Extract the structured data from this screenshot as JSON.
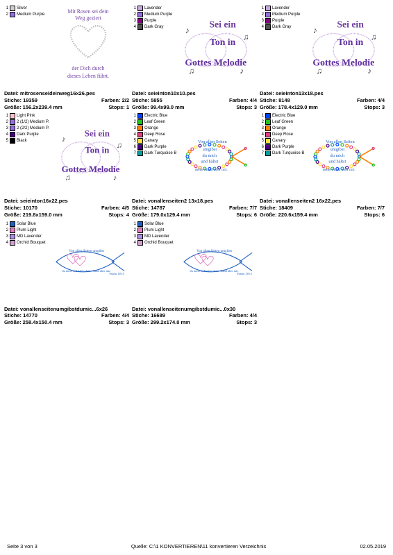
{
  "footer": {
    "page": "Seite 3 von 3",
    "source": "Quelle: C:\\1 KONVERTIEREN\\11 konvertieren Verzeichnis",
    "date": "02.05.2019"
  },
  "designs": [
    {
      "legend": [
        {
          "n": "1",
          "c": "#d0d0d0",
          "name": "Silver"
        },
        {
          "n": "2",
          "c": "#9370db",
          "name": "Medium Purple"
        }
      ],
      "file": "Datei: mitrosenseideinweg16x26.pes",
      "stiche": "Stiche: 19359",
      "farben": "Farben: 2/2",
      "groesse": "Größe: 156.2x239.4 mm",
      "stops": "Stops: 1",
      "svg": "heart"
    },
    {
      "legend": [
        {
          "n": "1",
          "c": "#c8a8e0",
          "name": "Lavender"
        },
        {
          "n": "2",
          "c": "#9370db",
          "name": "Medium Purple"
        },
        {
          "n": "3",
          "c": "#800080",
          "name": "Purple"
        },
        {
          "n": "4",
          "c": "#505050",
          "name": "Dark Gray"
        }
      ],
      "file": "Datei: seieinton10x10.pes",
      "stiche": "Stiche: 5855",
      "farben": "Farben: 4/4",
      "groesse": "Größe: 99.4x99.0 mm",
      "stops": "Stops: 3",
      "svg": "music"
    },
    {
      "legend": [
        {
          "n": "1",
          "c": "#c8a8e0",
          "name": "Lavender"
        },
        {
          "n": "2",
          "c": "#9370db",
          "name": "Medium Purple"
        },
        {
          "n": "3",
          "c": "#800080",
          "name": "Purple"
        },
        {
          "n": "4",
          "c": "#505050",
          "name": "Dark Gray"
        }
      ],
      "file": "Datei: seieinton13x18.pes",
      "stiche": "Stiche: 8148",
      "farben": "Farben: 4/4",
      "groesse": "Größe: 178.4x129.0 mm",
      "stops": "Stops: 3",
      "svg": "music"
    },
    {
      "legend": [
        {
          "n": "1",
          "c": "#ffc0cb",
          "name": "Light Pink"
        },
        {
          "n": "2",
          "c": "#9370db",
          "name": "2 (1/2) Medium P."
        },
        {
          "n": "3",
          "c": "#9370db",
          "name": "2 (2/2) Medium P."
        },
        {
          "n": "4",
          "c": "#4b0082",
          "name": "Dark Purple"
        },
        {
          "n": "5",
          "c": "#000000",
          "name": "Black"
        }
      ],
      "file": "Datei: seieinton16x22.pes",
      "stiche": "Stiche: 10170",
      "farben": "Farben: 4/5",
      "groesse": "Größe: 219.8x159.0 mm",
      "stops": "Stops: 4",
      "svg": "music"
    },
    {
      "legend": [
        {
          "n": "1",
          "c": "#0040ff",
          "name": "Electric Blue"
        },
        {
          "n": "2",
          "c": "#20c020",
          "name": "Leaf Green"
        },
        {
          "n": "3",
          "c": "#ff8000",
          "name": "Orange"
        },
        {
          "n": "4",
          "c": "#e04080",
          "name": "Deep Rose"
        },
        {
          "n": "5",
          "c": "#ffe040",
          "name": "Canary"
        },
        {
          "n": "6",
          "c": "#4b0082",
          "name": "Dark Purple"
        },
        {
          "n": "7",
          "c": "#00a0a0",
          "name": "Dark Turquoise B"
        }
      ],
      "file": "Datei: vonallenseiten2 13x18.pes",
      "stiche": "Stiche: 14787",
      "farben": "Farben: 7/7",
      "groesse": "Größe: 179.0x129.4 mm",
      "stops": "Stops: 6",
      "svg": "fish"
    },
    {
      "legend": [
        {
          "n": "1",
          "c": "#0040ff",
          "name": "Electric Blue"
        },
        {
          "n": "2",
          "c": "#20c020",
          "name": "Leaf Green"
        },
        {
          "n": "3",
          "c": "#ff8000",
          "name": "Orange"
        },
        {
          "n": "4",
          "c": "#e04080",
          "name": "Deep Rose"
        },
        {
          "n": "5",
          "c": "#ffe040",
          "name": "Canary"
        },
        {
          "n": "6",
          "c": "#4b0082",
          "name": "Dark Purple"
        },
        {
          "n": "7",
          "c": "#00a0a0",
          "name": "Dark Turquoise B"
        }
      ],
      "file": "Datei: vonallenseiten2 16x22.pes",
      "stiche": "Stiche: 18409",
      "farben": "Farben: 7/7",
      "groesse": "Größe: 220.6x159.4 mm",
      "stops": "Stops: 6",
      "svg": "fish"
    },
    {
      "legend": [
        {
          "n": "1",
          "c": "#2060c0",
          "name": "Solar Blue"
        },
        {
          "n": "2",
          "c": "#e080c0",
          "name": "Plum Light"
        },
        {
          "n": "3",
          "c": "#b090e0",
          "name": "MD Lavender"
        },
        {
          "n": "4",
          "c": "#d0a0d0",
          "name": "Orchid Bouquet"
        }
      ],
      "file": "Datei: vonallenseitenumgibstdumic...6x26",
      "stiche": "Stiche: 14770",
      "farben": "Farben: 4/4",
      "groesse": "Größe: 258.4x150.4 mm",
      "stops": "Stops: 3",
      "svg": "fish2"
    },
    {
      "legend": [
        {
          "n": "1",
          "c": "#2060c0",
          "name": "Solar Blue"
        },
        {
          "n": "2",
          "c": "#e080c0",
          "name": "Plum Light"
        },
        {
          "n": "3",
          "c": "#b090e0",
          "name": "MD Lavender"
        },
        {
          "n": "4",
          "c": "#d0a0d0",
          "name": "Orchid Bouquet"
        }
      ],
      "file": "Datei: vonallenseitenumgibstdumic...0x30",
      "stiche": "Stiche: 16689",
      "farben": "Farben: 4/4",
      "groesse": "Größe: 299.2x174.0 mm",
      "stops": "Stops: 3",
      "svg": "fish2"
    }
  ],
  "svg_text": {
    "heart_top": "Mit Rosen sei dein",
    "heart_mid": "Weg geziert",
    "heart_b1": "der Dich durch",
    "heart_b2": "dieses Leben führt.",
    "music_l1": "Sei ein",
    "music_l2": "Ton in",
    "music_l3": "Gottes Melodie",
    "fish_l1": "Von allen Seiten",
    "fish_l2": "umgibst",
    "fish_l3": "du mich",
    "fish_l4": "und hältst",
    "fish_l5": "deine Hand über mir.",
    "fish2_l1": "Von allen Seiten umgibst",
    "fish2_l2": "du mich und hältst deine Hand über mir.",
    "psalm": "Psalm 139,5"
  },
  "colors": {
    "purple": "#7040a0",
    "silver": "#c0c0c0",
    "blue": "#2060c0",
    "lav": "#c8a8e0",
    "pink": "#e080c0"
  }
}
